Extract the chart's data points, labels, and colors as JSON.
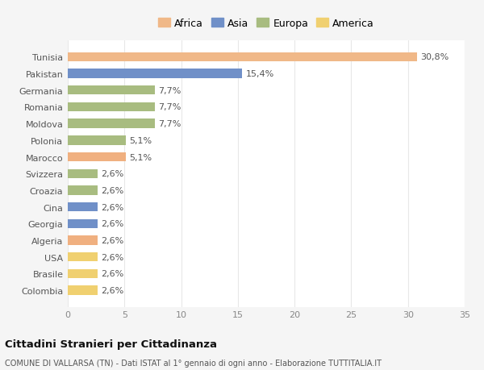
{
  "categories": [
    "Colombia",
    "Brasile",
    "USA",
    "Algeria",
    "Georgia",
    "Cina",
    "Croazia",
    "Svizzera",
    "Marocco",
    "Polonia",
    "Moldova",
    "Romania",
    "Germania",
    "Pakistan",
    "Tunisia"
  ],
  "values": [
    2.6,
    2.6,
    2.6,
    2.6,
    2.6,
    2.6,
    2.6,
    2.6,
    5.1,
    5.1,
    7.7,
    7.7,
    7.7,
    15.4,
    30.8
  ],
  "colors": [
    "#f0d070",
    "#f0d070",
    "#f0d070",
    "#f0b080",
    "#7090c8",
    "#7090c8",
    "#a8bc80",
    "#a8bc80",
    "#f0b080",
    "#a8bc80",
    "#a8bc80",
    "#a8bc80",
    "#a8bc80",
    "#7090c8",
    "#f0b888"
  ],
  "labels": [
    "2,6%",
    "2,6%",
    "2,6%",
    "2,6%",
    "2,6%",
    "2,6%",
    "2,6%",
    "2,6%",
    "5,1%",
    "5,1%",
    "7,7%",
    "7,7%",
    "7,7%",
    "15,4%",
    "30,8%"
  ],
  "legend": [
    {
      "label": "Africa",
      "color": "#f0b888"
    },
    {
      "label": "Asia",
      "color": "#7090c8"
    },
    {
      "label": "Europa",
      "color": "#a8bc80"
    },
    {
      "label": "America",
      "color": "#f0d070"
    }
  ],
  "title": "Cittadini Stranieri per Cittadinanza",
  "subtitle": "COMUNE DI VALLARSA (TN) - Dati ISTAT al 1° gennaio di ogni anno - Elaborazione TUTTITALIA.IT",
  "xlim": [
    0,
    35
  ],
  "xticks": [
    0,
    5,
    10,
    15,
    20,
    25,
    30,
    35
  ],
  "bg_color": "#f5f5f5",
  "plot_bg": "#ffffff",
  "grid_color": "#e8e8e8",
  "label_fontsize": 8,
  "tick_fontsize": 8,
  "ylabel_fontsize": 8
}
